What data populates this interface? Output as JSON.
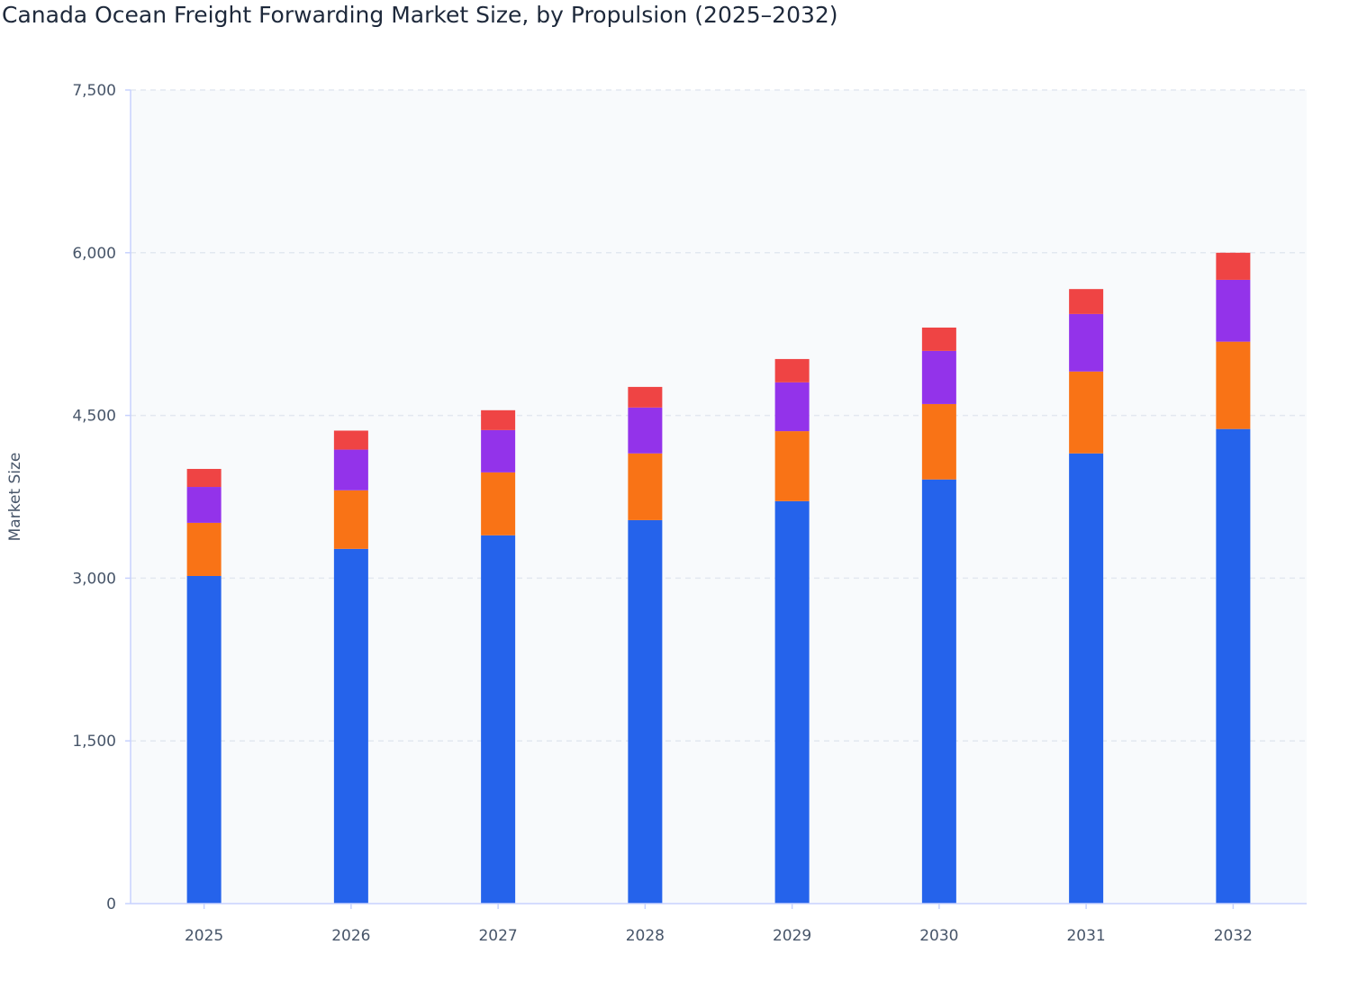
{
  "chart_data": {
    "type": "bar",
    "stacked": true,
    "title": "Canada Ocean Freight Forwarding Market Size, by Propulsion (2025–2032)",
    "xlabel": "",
    "ylabel": "Market Size",
    "ylim": [
      0,
      7500
    ],
    "yticks": [
      0,
      1500,
      3000,
      4500,
      6000,
      7500
    ],
    "ytick_labels": [
      "0",
      "1,500",
      "3,000",
      "4,500",
      "6,000",
      "7,500"
    ],
    "grid": true,
    "legend": "none",
    "categories": [
      "2025",
      "2026",
      "2027",
      "2028",
      "2029",
      "2030",
      "2031",
      "2032"
    ],
    "series": [
      {
        "color": "#2563eb",
        "values": [
          3020,
          3270,
          3395,
          3535,
          3710,
          3910,
          4150,
          4375
        ]
      },
      {
        "color": "#f97316",
        "values": [
          490,
          540,
          580,
          615,
          645,
          695,
          755,
          805
        ]
      },
      {
        "color": "#9333ea",
        "values": [
          331,
          375,
          390,
          423,
          450,
          490,
          530,
          570
        ]
      },
      {
        "color": "#ef4444",
        "values": [
          166,
          175,
          183,
          190,
          215,
          215,
          230,
          250
        ]
      }
    ]
  },
  "colors": {
    "plot_background": "#f8fafc",
    "grid": "#e2e8f0",
    "axis": "#c7d2fe"
  }
}
